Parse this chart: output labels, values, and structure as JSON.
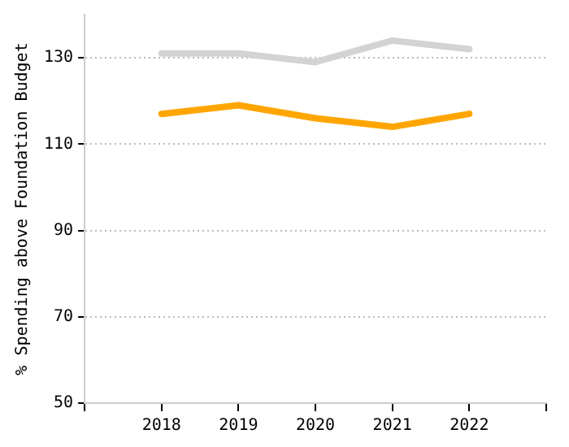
{
  "chart_data": {
    "type": "line",
    "ylabel": "% Spending above Foundation Budget",
    "x": [
      2018,
      2019,
      2020,
      2021,
      2022
    ],
    "xlim": [
      2017,
      2023
    ],
    "xticks": [
      2018,
      2019,
      2020,
      2021,
      2022
    ],
    "ylim": [
      50,
      140
    ],
    "yticks": [
      50,
      70,
      90,
      110,
      130
    ],
    "grid": "y",
    "legend": false,
    "marker": "none",
    "series": [
      {
        "color": "#d3d3d3",
        "values": [
          131,
          131,
          129,
          134,
          132
        ]
      },
      {
        "color": "#ffa500",
        "values": [
          117,
          119,
          116,
          114,
          117
        ]
      }
    ]
  }
}
